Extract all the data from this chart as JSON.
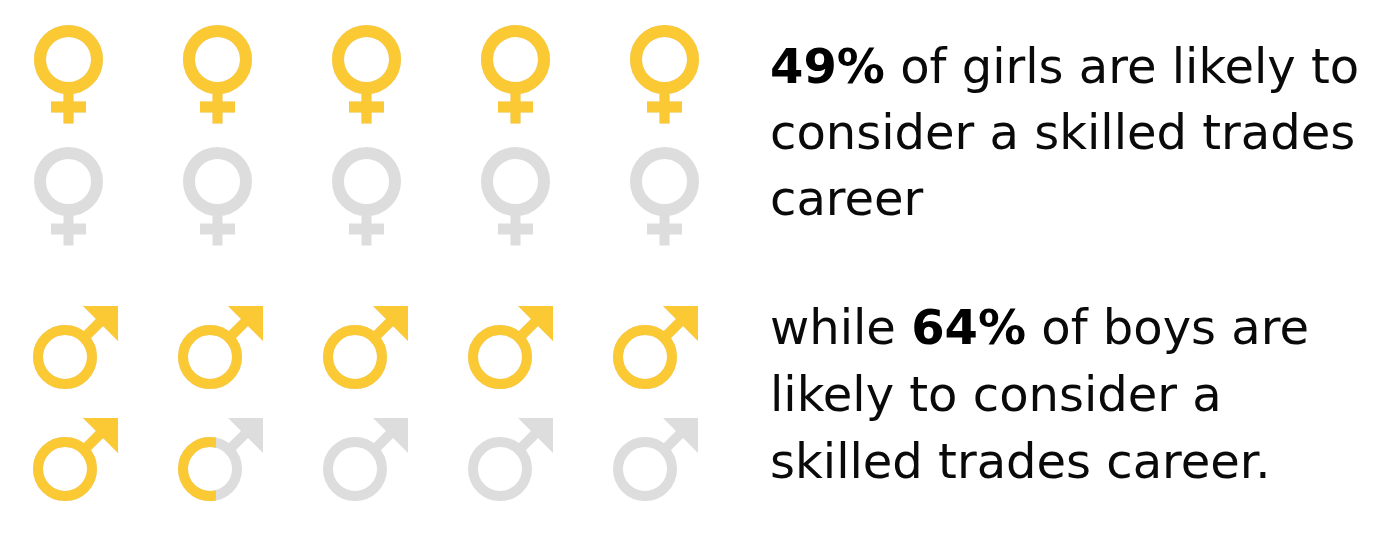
{
  "chart_data": {
    "type": "other",
    "values": [
      49,
      64
    ],
    "value_labels": [
      "49%",
      "64%"
    ],
    "color": "#fbc934",
    "annotations": [
      "of girls are likely to consider a skilled trades career",
      "while",
      "of boys are likely to consider a skilled trades career."
    ]
  }
}
